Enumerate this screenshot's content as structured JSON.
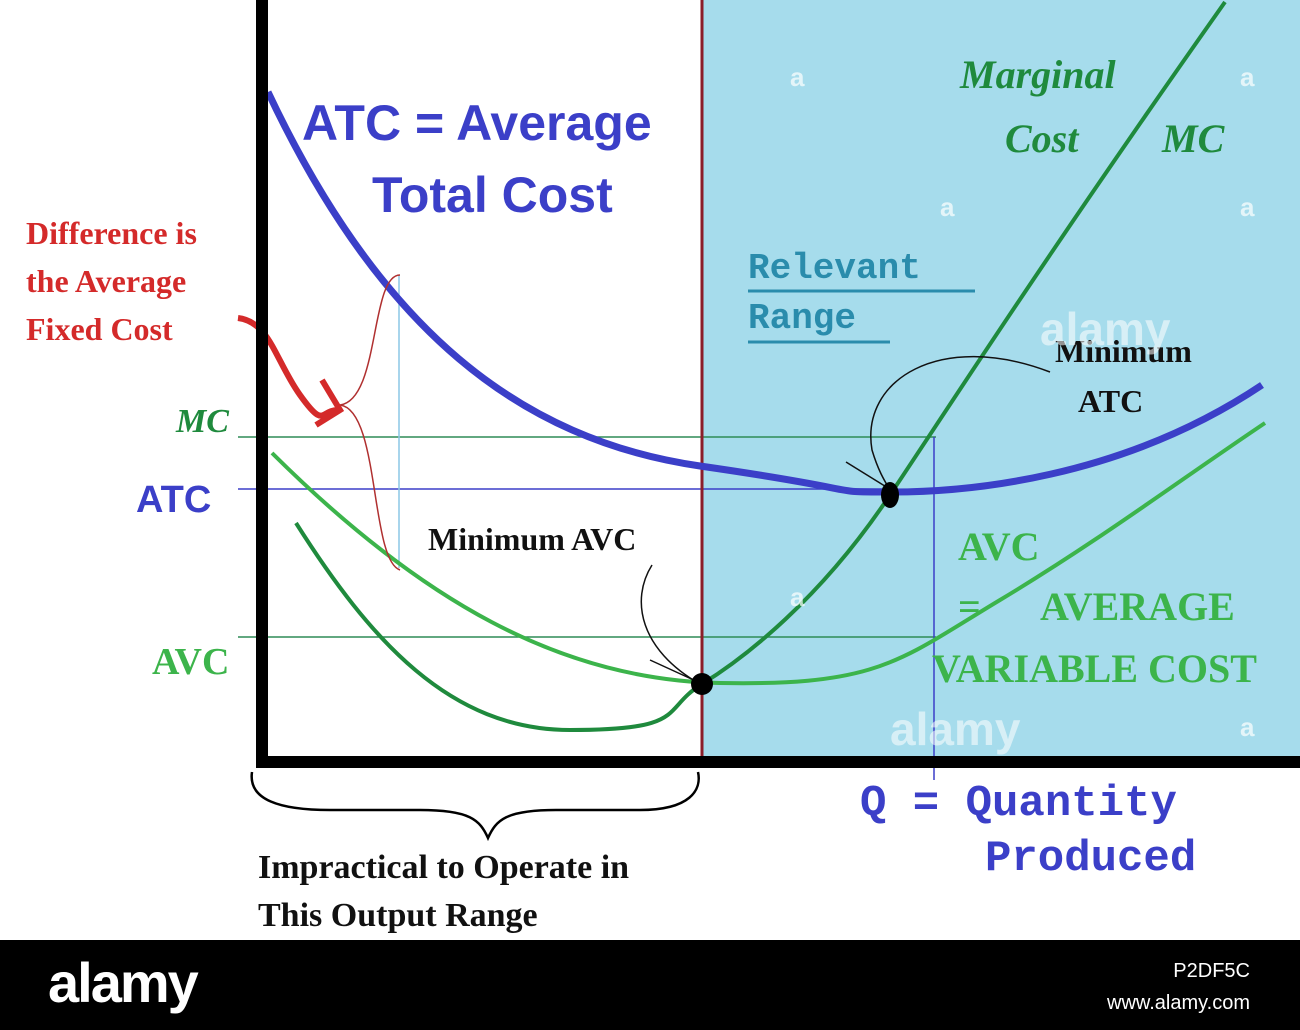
{
  "colors": {
    "atc": "#3b3fc8",
    "mc": "#1f8a3d",
    "avc": "#3cb44b",
    "relevant_bg": "#a6dcec",
    "arrow": "#d42a2a",
    "divider": "#8b1e2a"
  },
  "chart_data": {
    "type": "line",
    "xlabel": "Q = Quantity Produced",
    "ylim": [
      0,
      10
    ],
    "xlim": [
      0,
      10
    ],
    "series": [
      {
        "name": "ATC = Average Total Cost",
        "x": [
          0,
          1,
          2,
          3,
          4,
          5,
          6,
          7,
          8,
          9,
          10
        ],
        "y": [
          9.6,
          7.5,
          5.9,
          4.8,
          4.0,
          3.5,
          3.3,
          3.3,
          3.5,
          3.9,
          4.6
        ]
      },
      {
        "name": "Marginal Cost MC",
        "x": [
          0.2,
          1,
          2,
          3,
          4,
          5,
          6,
          7,
          8,
          9,
          9.5
        ],
        "y": [
          3.0,
          1.8,
          0.4,
          0.6,
          1.1,
          2.0,
          3.2,
          4.8,
          6.8,
          9.3,
          11.0
        ]
      },
      {
        "name": "AVC = Average Variable Cost",
        "x": [
          0,
          1,
          2,
          3,
          4,
          5,
          6,
          7,
          8,
          9,
          10
        ],
        "y": [
          3.9,
          2.8,
          2.0,
          1.4,
          1.1,
          1.0,
          1.1,
          1.4,
          1.9,
          2.7,
          3.9
        ]
      }
    ],
    "points": [
      {
        "name": "Minimum ATC",
        "x": 6.6,
        "y": 3.3
      },
      {
        "name": "Minimum AVC",
        "x": 4.6,
        "y": 1.0
      }
    ],
    "y_markers": [
      {
        "label": "MC",
        "y": 3.8
      },
      {
        "label": "ATC",
        "y": 3.3
      },
      {
        "label": "AVC",
        "y": 1.4
      }
    ]
  },
  "labels": {
    "atc_title_line1": "ATC = Average",
    "atc_title_line2": "Total Cost",
    "mc_line1": "Marginal",
    "mc_line2": "Cost",
    "mc_abbrev": "MC",
    "avc_line1": "AVC",
    "avc_line2": "=",
    "avc_line2b": "AVERAGE",
    "avc_line3": "VARIABLE COST",
    "relevant_line1": "Relevant",
    "relevant_line2": "Range",
    "afc_line1": "Difference is",
    "afc_line2": "the Average",
    "afc_line3": "Fixed Cost",
    "min_atc_line1": "Minimum",
    "min_atc_line2": "ATC",
    "min_avc": "Minimum AVC",
    "axis_mc": "MC",
    "axis_atc": "ATC",
    "axis_avc": "AVC",
    "q_line1": "Q = Quantity",
    "q_line2": "Produced",
    "impractical_line1": "Impractical to Operate in",
    "impractical_line2": "This Output Range"
  },
  "watermarks": {
    "mark1": "alamy",
    "mark2": "alamy",
    "letter": "a"
  },
  "footer": {
    "logo": "alamy",
    "image_id": "P2DF5C",
    "url": "www.alamy.com"
  }
}
